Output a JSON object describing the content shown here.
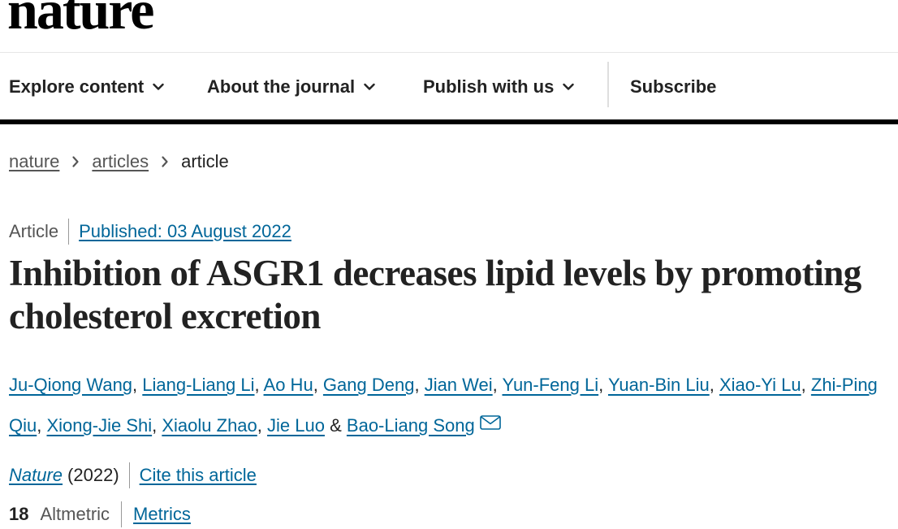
{
  "brand": {
    "logo": "nature"
  },
  "nav": {
    "items": [
      {
        "label": "Explore content",
        "icon": "chevron-down-icon"
      },
      {
        "label": "About the journal",
        "icon": "chevron-down-icon"
      },
      {
        "label": "Publish with us",
        "icon": "chevron-down-icon"
      }
    ],
    "subscribe": "Subscribe"
  },
  "breadcrumb": {
    "items": [
      "nature",
      "articles"
    ],
    "current": "article",
    "separator_icon": "chevron-right-icon"
  },
  "article": {
    "type": "Article",
    "published": "Published: 03 August 2022",
    "title": "Inhibition of ASGR1 decreases lipid levels by promoting cholesterol excretion",
    "authors": [
      "Ju-Qiong Wang",
      "Liang-Liang Li",
      "Ao Hu",
      "Gang Deng",
      "Jian Wei",
      "Yun-Feng Li",
      "Yuan-Bin Liu",
      "Xiao-Yi Lu",
      "Zhi-Ping Qiu",
      "Xiong-Jie Shi",
      "Xiaolu Zhao",
      "Jie Luo"
    ],
    "author_joiner": "&",
    "last_author": "Bao-Liang Song",
    "contact_icon": "mail-icon",
    "journal": "Nature",
    "year": "(2022)",
    "cite": "Cite this article"
  },
  "metrics": {
    "altmetric_count": "18",
    "altmetric_label": "Altmetric",
    "link": "Metrics"
  },
  "colors": {
    "link": "#006699",
    "text": "#222222",
    "muted": "#555555",
    "rule": "#000000"
  }
}
